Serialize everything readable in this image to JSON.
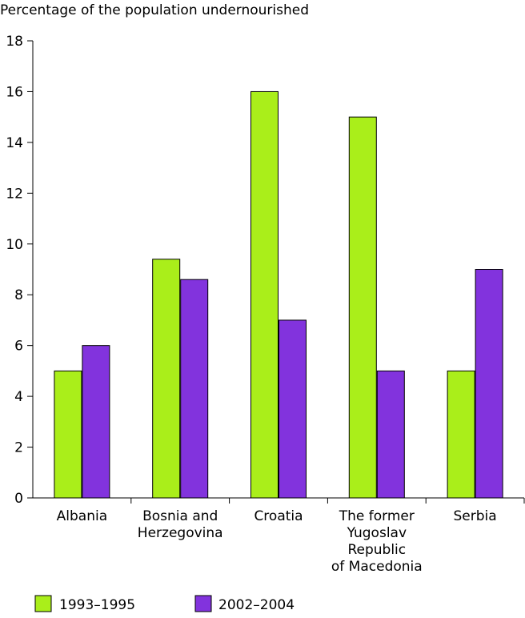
{
  "chart_data": {
    "type": "bar",
    "title": "",
    "xlabel": "",
    "ylabel": "Percentage of the population undernourished",
    "ylim": [
      0,
      18
    ],
    "yticks": [
      0,
      2,
      4,
      6,
      8,
      10,
      12,
      14,
      16,
      18
    ],
    "grid": false,
    "legend_position": "bottom",
    "categories": [
      [
        "Albania"
      ],
      [
        "Bosnia and",
        "Herzegovina"
      ],
      [
        "Croatia"
      ],
      [
        "The former",
        "Yugoslav",
        "Republic",
        "of Macedonia"
      ],
      [
        "Serbia"
      ]
    ],
    "series": [
      {
        "name": "1993–1995",
        "color": "#aaee1a",
        "values": [
          5,
          9.4,
          16,
          15,
          5
        ]
      },
      {
        "name": "2002–2004",
        "color": "#8233dd",
        "values": [
          6,
          8.6,
          7,
          5,
          9
        ]
      }
    ]
  }
}
